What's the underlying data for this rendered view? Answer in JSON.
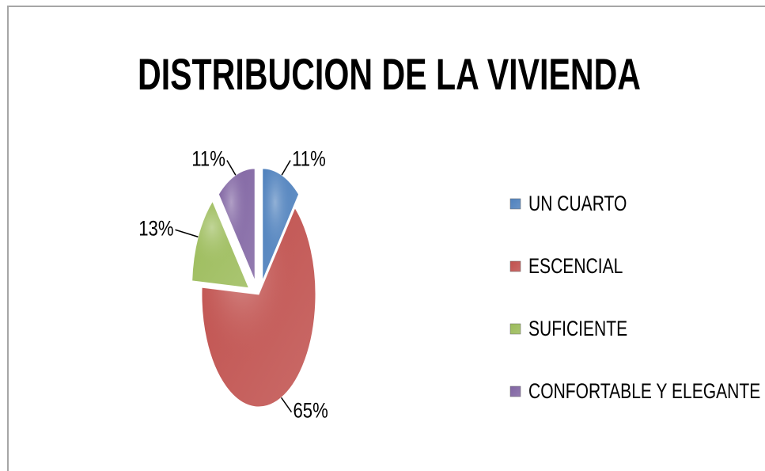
{
  "chart_data": {
    "type": "pie",
    "title": "DISTRIBUCION DE LA VIVIENDA",
    "categories": [
      "UN CUARTO",
      "ESCENCIAL",
      "SUFICIENTE",
      "CONFORTABLE Y ELEGANTE"
    ],
    "values": [
      11,
      65,
      13,
      11
    ],
    "value_labels": [
      "11%",
      "65%",
      "13%",
      "11%"
    ],
    "colors": [
      "#4f81bd",
      "#c0504d",
      "#9bbb59",
      "#8064a2"
    ],
    "legend": "right"
  }
}
